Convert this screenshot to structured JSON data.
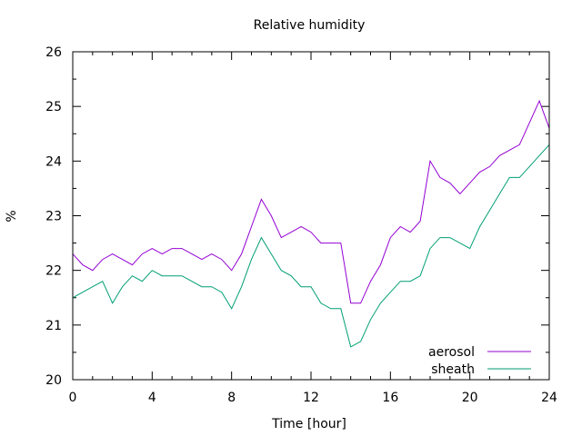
{
  "chart_data": {
    "type": "line",
    "title": "Relative humidity",
    "xlabel": "Time [hour]",
    "ylabel": "%",
    "xlim": [
      0,
      24
    ],
    "ylim": [
      20,
      26
    ],
    "xticks": [
      0,
      4,
      8,
      12,
      16,
      20,
      24
    ],
    "yticks": [
      20,
      21,
      22,
      23,
      24,
      25,
      26
    ],
    "grid": false,
    "legend_position": "bottom-right",
    "series": [
      {
        "name": "aerosol",
        "color": "#9400d3",
        "x": [
          0,
          0.5,
          1,
          1.5,
          2,
          2.5,
          3,
          3.5,
          4,
          4.5,
          5,
          5.5,
          6,
          6.5,
          7,
          7.5,
          8,
          8.5,
          9,
          9.5,
          10,
          10.5,
          11,
          11.5,
          12,
          12.5,
          13,
          13.5,
          14,
          14.5,
          15,
          15.5,
          16,
          16.5,
          17,
          17.5,
          18,
          18.5,
          19,
          19.5,
          20,
          20.5,
          21,
          21.5,
          22,
          22.5,
          23,
          23.5,
          24
        ],
        "values": [
          22.3,
          22.1,
          22.0,
          22.2,
          22.3,
          22.2,
          22.1,
          22.3,
          22.4,
          22.3,
          22.4,
          22.4,
          22.3,
          22.2,
          22.3,
          22.2,
          22.0,
          22.3,
          22.8,
          23.3,
          23.0,
          22.6,
          22.7,
          22.8,
          22.7,
          22.5,
          22.5,
          22.5,
          21.4,
          21.4,
          21.8,
          22.1,
          22.6,
          22.8,
          22.7,
          22.9,
          24.0,
          23.7,
          23.6,
          23.4,
          23.6,
          23.8,
          23.9,
          24.1,
          24.2,
          24.3,
          24.7,
          25.1,
          24.6
        ]
      },
      {
        "name": "sheath",
        "color": "#009e73",
        "x": [
          0,
          0.5,
          1,
          1.5,
          2,
          2.5,
          3,
          3.5,
          4,
          4.5,
          5,
          5.5,
          6,
          6.5,
          7,
          7.5,
          8,
          8.5,
          9,
          9.5,
          10,
          10.5,
          11,
          11.5,
          12,
          12.5,
          13,
          13.5,
          14,
          14.5,
          15,
          15.5,
          16,
          16.5,
          17,
          17.5,
          18,
          18.5,
          19,
          19.5,
          20,
          20.5,
          21,
          21.5,
          22,
          22.5,
          23,
          23.5,
          24
        ],
        "values": [
          21.5,
          21.6,
          21.7,
          21.8,
          21.4,
          21.7,
          21.9,
          21.8,
          22.0,
          21.9,
          21.9,
          21.9,
          21.8,
          21.7,
          21.7,
          21.6,
          21.3,
          21.7,
          22.2,
          22.6,
          22.3,
          22.0,
          21.9,
          21.7,
          21.7,
          21.4,
          21.3,
          21.3,
          20.6,
          20.7,
          21.1,
          21.4,
          21.6,
          21.8,
          21.8,
          21.9,
          22.4,
          22.6,
          22.6,
          22.5,
          22.4,
          22.8,
          23.1,
          23.4,
          23.7,
          23.7,
          23.9,
          24.1,
          24.3
        ]
      }
    ]
  }
}
